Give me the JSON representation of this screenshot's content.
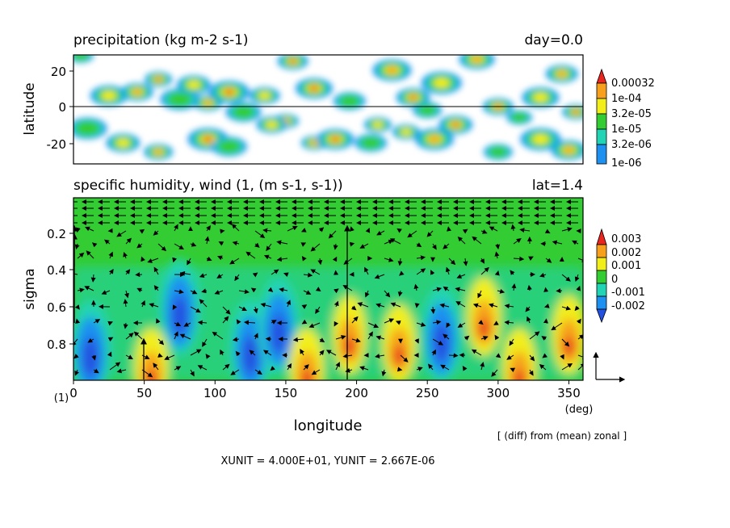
{
  "top_panel": {
    "title": "precipitation (kg m-2 s-1)",
    "day_label": "day=0.0",
    "ylabel": "latitude",
    "y_ticks": [
      "20",
      "0",
      "-20"
    ],
    "legend_labels": [
      "0.00032",
      "1e-04",
      "3.2e-05",
      "1e-05",
      "3.2e-06",
      "1e-06"
    ]
  },
  "bottom_panel": {
    "title": "specific humidity, wind (1, (m s-1, s-1))",
    "lat_label": "lat=1.4",
    "ylabel": "sigma",
    "y_ticks": [
      "0.2",
      "0.4",
      "0.6",
      "0.8"
    ],
    "legend_labels": [
      "0.003",
      "0.002",
      "0.001",
      "0",
      "-0.001",
      "-0.002"
    ]
  },
  "x_axis": {
    "label": "longitude",
    "ticks": [
      "0",
      "50",
      "100",
      "150",
      "200",
      "250",
      "300",
      "350"
    ],
    "unit": "(deg)",
    "index_label": "(1)"
  },
  "note": "[ (diff) from (mean) zonal ]",
  "unit_line": "XUNIT = 4.000E+01, YUNIT = 2.667E-06",
  "colors": {
    "red": "#e8261f",
    "orange": "#f6a01e",
    "yellow": "#f2ee1b",
    "green": "#33cc33",
    "cyan": "#22d4b4",
    "blue": "#1e90f0",
    "darkblue": "#2250e0"
  },
  "chart_data": [
    {
      "type": "heatmap",
      "title": "precipitation (kg m-2 s-1)",
      "xlabel": "longitude",
      "ylabel": "latitude",
      "xlim": [
        0,
        360
      ],
      "ylim": [
        -30,
        30
      ],
      "levels": [
        1e-06,
        3.2e-06,
        1e-05,
        3.2e-05,
        0.0001,
        0.00032
      ],
      "blobs": [
        {
          "lon": 5,
          "lat": 28
        },
        {
          "lon": 25,
          "lat": 6
        },
        {
          "lon": 45,
          "lat": 8
        },
        {
          "lon": 60,
          "lat": 15
        },
        {
          "lon": 75,
          "lat": 4
        },
        {
          "lon": 85,
          "lat": 12
        },
        {
          "lon": 95,
          "lat": 2
        },
        {
          "lon": 110,
          "lat": 8
        },
        {
          "lon": 120,
          "lat": -3
        },
        {
          "lon": 135,
          "lat": 6
        },
        {
          "lon": 150,
          "lat": -8
        },
        {
          "lon": 170,
          "lat": 10
        },
        {
          "lon": 195,
          "lat": 3
        },
        {
          "lon": 215,
          "lat": -10
        },
        {
          "lon": 225,
          "lat": 20
        },
        {
          "lon": 240,
          "lat": 5
        },
        {
          "lon": 250,
          "lat": -2
        },
        {
          "lon": 260,
          "lat": 13
        },
        {
          "lon": 285,
          "lat": 26
        },
        {
          "lon": 300,
          "lat": 0
        },
        {
          "lon": 315,
          "lat": -6
        },
        {
          "lon": 330,
          "lat": 5
        },
        {
          "lon": 345,
          "lat": 18
        },
        {
          "lon": 355,
          "lat": -3
        },
        {
          "lon": 10,
          "lat": -12
        },
        {
          "lon": 35,
          "lat": -20
        },
        {
          "lon": 60,
          "lat": -25
        },
        {
          "lon": 95,
          "lat": -18
        },
        {
          "lon": 110,
          "lat": -22
        },
        {
          "lon": 140,
          "lat": -10
        },
        {
          "lon": 170,
          "lat": -20
        },
        {
          "lon": 185,
          "lat": -18
        },
        {
          "lon": 210,
          "lat": -20
        },
        {
          "lon": 235,
          "lat": -14
        },
        {
          "lon": 255,
          "lat": -18
        },
        {
          "lon": 270,
          "lat": -10
        },
        {
          "lon": 300,
          "lat": -25
        },
        {
          "lon": 330,
          "lat": -18
        },
        {
          "lon": 350,
          "lat": -24
        },
        {
          "lon": 155,
          "lat": 25
        }
      ]
    },
    {
      "type": "heatmap",
      "title": "specific humidity, wind (1, (m s-1, s-1))",
      "xlabel": "longitude",
      "ylabel": "sigma",
      "xlim": [
        0,
        360
      ],
      "ylim": [
        0,
        1
      ],
      "levels": [
        -0.002,
        -0.001,
        0,
        0.001,
        0.002,
        0.003
      ],
      "features": [
        {
          "lon": 12,
          "sigma": 0.83,
          "sign": -1
        },
        {
          "lon": 55,
          "sigma": 0.93,
          "sign": 1
        },
        {
          "lon": 75,
          "sigma": 0.6,
          "sign": -1
        },
        {
          "lon": 125,
          "sigma": 0.82,
          "sign": -1
        },
        {
          "lon": 145,
          "sigma": 0.7,
          "sign": -1
        },
        {
          "lon": 165,
          "sigma": 0.93,
          "sign": 1
        },
        {
          "lon": 195,
          "sigma": 0.75,
          "sign": 1
        },
        {
          "lon": 230,
          "sigma": 0.8,
          "sign": 1
        },
        {
          "lon": 260,
          "sigma": 0.75,
          "sign": -1
        },
        {
          "lon": 290,
          "sigma": 0.65,
          "sign": 1
        },
        {
          "lon": 315,
          "sigma": 0.93,
          "sign": 1
        },
        {
          "lon": 350,
          "sigma": 0.75,
          "sign": 1
        }
      ]
    }
  ]
}
